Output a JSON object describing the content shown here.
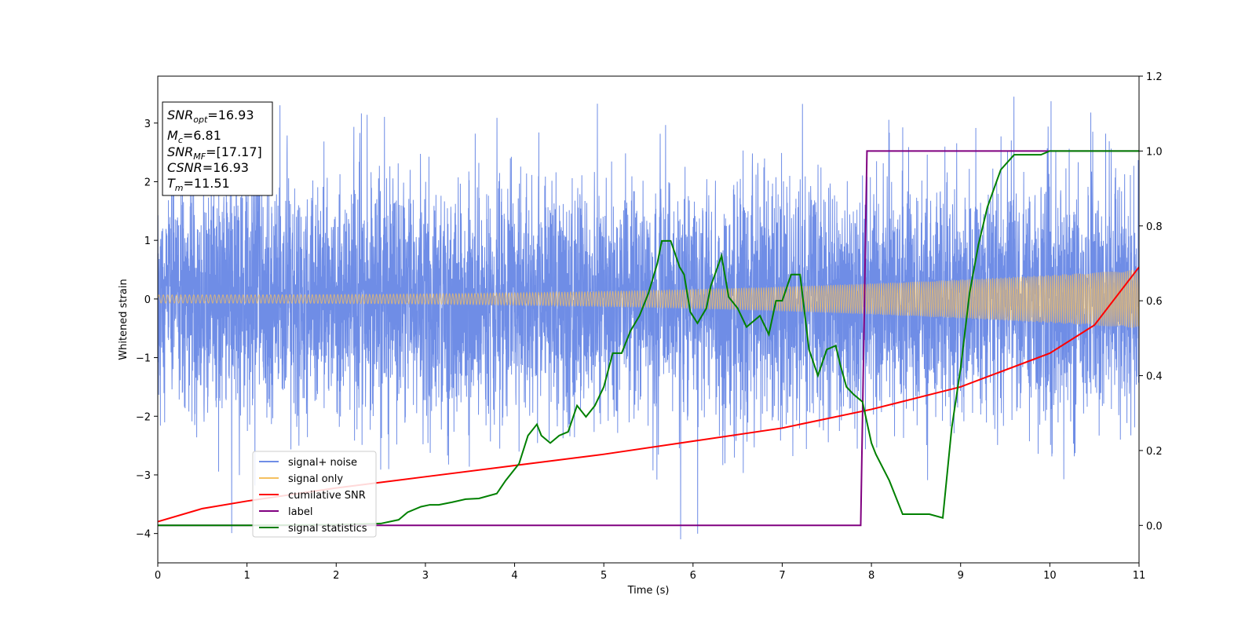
{
  "chart_data": {
    "type": "line",
    "xlabel": "Time (s)",
    "ylabel": "Whitened strain",
    "xlim": [
      0,
      11
    ],
    "ylim": [
      -4.5,
      3.8
    ],
    "y2lim": [
      -0.1,
      1.2
    ],
    "xticks": [
      "0",
      "1",
      "2",
      "3",
      "4",
      "5",
      "6",
      "7",
      "8",
      "9",
      "10",
      "11"
    ],
    "yticks": [
      "−4",
      "−3",
      "−2",
      "−1",
      "0",
      "1",
      "2",
      "3"
    ],
    "y2ticks": [
      "0.0",
      "0.2",
      "0.4",
      "0.6",
      "0.8",
      "1.0",
      "1.2"
    ],
    "legend_position": "lower-left",
    "annotations": {
      "snr_opt": {
        "name": "SNR",
        "sub": "opt",
        "value": "=16.93"
      },
      "mc": {
        "name": "M",
        "sub": "c",
        "value": "=6.81"
      },
      "snr_mf": {
        "name": "SNR",
        "sub": "MF",
        "value": "=[17.17]"
      },
      "csnr": {
        "name": "CSNR",
        "sub": "",
        "value": "=16.93"
      },
      "tm": {
        "name": "T",
        "sub": "m",
        "value": "=11.51"
      }
    },
    "series": [
      {
        "name": "signal+ noise",
        "color": "#6f8de6",
        "axis": "left",
        "envelope_std": 1.0,
        "spike_extent": [
          -4.15,
          3.45
        ]
      },
      {
        "name": "signal only",
        "color": "#f5c060",
        "axis": "left",
        "amplitude_start": 0.07,
        "amplitude_end": 0.5
      },
      {
        "name": "cumilative SNR",
        "color": "#ff0000",
        "axis": "right",
        "x": [
          0,
          0.5,
          1,
          2,
          3,
          4,
          5,
          6,
          7,
          8,
          9,
          10,
          10.5,
          11
        ],
        "y": [
          0.01,
          0.045,
          0.065,
          0.1,
          0.13,
          0.16,
          0.19,
          0.225,
          0.26,
          0.31,
          0.37,
          0.46,
          0.535,
          0.69
        ]
      },
      {
        "name": "label",
        "color": "#800080",
        "axis": "right",
        "x": [
          0,
          7.88,
          7.95,
          11
        ],
        "y": [
          0,
          0,
          1,
          1
        ]
      },
      {
        "name": "signal statistics",
        "color": "#008000",
        "axis": "right",
        "x": [
          0,
          1,
          2,
          2.5,
          2.7,
          2.8,
          2.95,
          3.05,
          3.15,
          3.3,
          3.45,
          3.6,
          3.8,
          3.9,
          4.05,
          4.15,
          4.25,
          4.3,
          4.4,
          4.5,
          4.6,
          4.7,
          4.8,
          4.9,
          5.0,
          5.1,
          5.2,
          5.3,
          5.4,
          5.5,
          5.6,
          5.65,
          5.75,
          5.85,
          5.9,
          5.97,
          6.05,
          6.15,
          6.2,
          6.32,
          6.4,
          6.5,
          6.6,
          6.75,
          6.85,
          6.93,
          7.0,
          7.1,
          7.2,
          7.3,
          7.4,
          7.5,
          7.6,
          7.65,
          7.72,
          7.8,
          7.9,
          8.0,
          8.05,
          8.2,
          8.35,
          8.5,
          8.65,
          8.8,
          8.9,
          9.0,
          9.1,
          9.2,
          9.3,
          9.45,
          9.6,
          9.75,
          9.9,
          10.0,
          10.3,
          10.6,
          11
        ],
        "y": [
          0,
          0,
          0.002,
          0.005,
          0.015,
          0.035,
          0.05,
          0.055,
          0.055,
          0.062,
          0.07,
          0.072,
          0.085,
          0.12,
          0.165,
          0.24,
          0.27,
          0.24,
          0.22,
          0.24,
          0.25,
          0.32,
          0.29,
          0.32,
          0.37,
          0.46,
          0.46,
          0.52,
          0.56,
          0.62,
          0.7,
          0.76,
          0.76,
          0.69,
          0.67,
          0.57,
          0.54,
          0.58,
          0.64,
          0.72,
          0.61,
          0.58,
          0.53,
          0.56,
          0.51,
          0.6,
          0.6,
          0.67,
          0.67,
          0.47,
          0.4,
          0.47,
          0.48,
          0.43,
          0.37,
          0.35,
          0.33,
          0.22,
          0.19,
          0.12,
          0.03,
          0.03,
          0.03,
          0.02,
          0.26,
          0.42,
          0.62,
          0.75,
          0.85,
          0.95,
          0.99,
          0.99,
          0.99,
          1.0,
          1.0,
          1.0,
          1.0
        ]
      }
    ]
  }
}
